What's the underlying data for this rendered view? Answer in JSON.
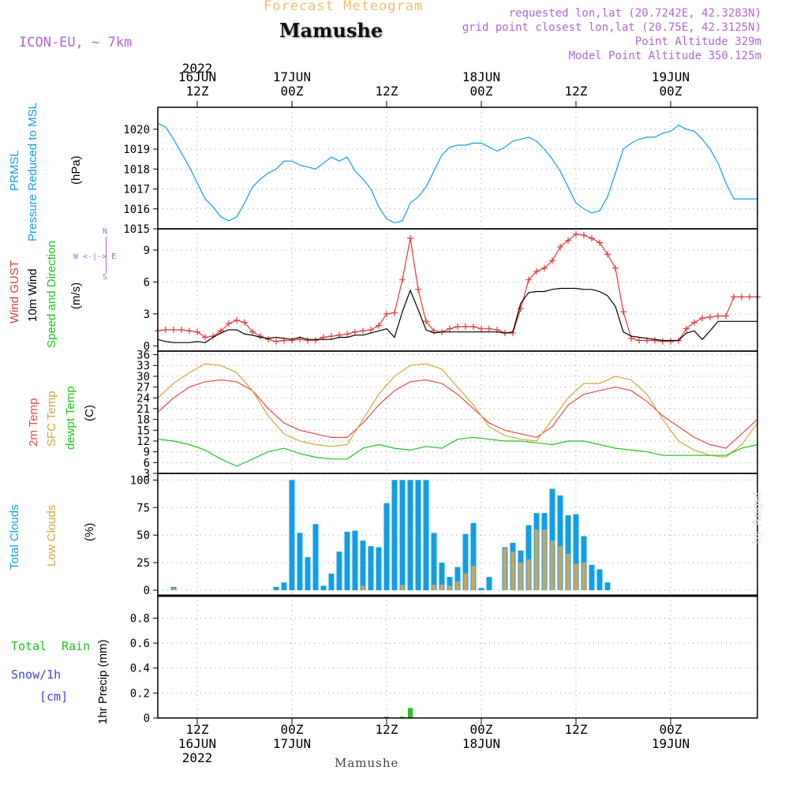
{
  "header": {
    "product": "Forecast Meteogram",
    "station": "Mamushe",
    "model": "ICON-EU, ~ 7km",
    "requested": "requested lon,lat (20.7242E, 42.3283N)",
    "grid_point": "grid point closest lon,lat (20.75E, 42.3125N)",
    "point_alt": "Point Altitude 329m",
    "model_alt": "Model Point Altitude 350.125m",
    "watermark": "by Angel",
    "footer_station": "Mamushe"
  },
  "time_axis": {
    "year": "2022",
    "ticks": [
      {
        "h": 12,
        "top": [
          "16JUN",
          "12Z"
        ],
        "bottom": [
          "12Z",
          "16JUN",
          "2022"
        ]
      },
      {
        "h": 24,
        "top": [
          "17JUN",
          "00Z"
        ],
        "bottom": [
          "00Z",
          "17JUN"
        ]
      },
      {
        "h": 36,
        "top": [
          "12Z"
        ],
        "bottom": [
          "12Z"
        ]
      },
      {
        "h": 48,
        "top": [
          "18JUN",
          "00Z"
        ],
        "bottom": [
          "00Z",
          "18JUN"
        ]
      },
      {
        "h": 60,
        "top": [
          "12Z"
        ],
        "bottom": [
          "12Z"
        ]
      },
      {
        "h": 72,
        "top": [
          "19JUN",
          "00Z"
        ],
        "bottom": [
          "00Z",
          "19JUN"
        ]
      }
    ],
    "hour_range": [
      7,
      83
    ]
  },
  "colors": {
    "pressure": "#119ee6",
    "gust": "#e23a3a",
    "wind": "#000000",
    "temp": "#e34a4a",
    "sfc": "#d8a53e",
    "dewpt": "#22c322",
    "total_clouds": "#119ee6",
    "low_clouds": "#c7a55e",
    "rain": "#22c322",
    "snow": "#4444dd",
    "header_purple": "#b066d8",
    "header_orange": "#f0c070"
  },
  "chart_data": [
    {
      "type": "line",
      "panel": "pressure",
      "labels": [
        "PRMSL",
        "Pressure Reduced to MSL",
        "(hPa)"
      ],
      "yticks": [
        1015,
        1016,
        1017,
        1018,
        1019,
        1020
      ],
      "ylim": [
        1015,
        1021.1
      ],
      "series": [
        {
          "name": "PRMSL",
          "x": [
            7,
            8,
            9,
            10,
            11,
            12,
            13,
            14,
            15,
            16,
            17,
            18,
            19,
            20,
            21,
            22,
            23,
            24,
            25,
            26,
            27,
            28,
            29,
            30,
            31,
            32,
            33,
            34,
            35,
            36,
            37,
            38,
            39,
            40,
            41,
            42,
            43,
            44,
            45,
            46,
            47,
            48,
            49,
            50,
            51,
            52,
            53,
            54,
            55,
            56,
            57,
            58,
            59,
            60,
            61,
            62,
            63,
            64,
            65,
            66,
            67,
            68,
            69,
            70,
            71,
            72,
            73,
            74,
            75,
            76,
            77,
            78,
            79,
            80,
            81,
            82,
            83
          ],
          "values": [
            1020.3,
            1020.1,
            1019.5,
            1018.8,
            1018.1,
            1017.3,
            1016.5,
            1016.1,
            1015.6,
            1015.4,
            1015.6,
            1016.3,
            1017.1,
            1017.5,
            1017.8,
            1018.0,
            1018.4,
            1018.4,
            1018.2,
            1018.1,
            1018.0,
            1018.3,
            1018.6,
            1018.4,
            1018.6,
            1017.9,
            1017.5,
            1017.0,
            1016.1,
            1015.5,
            1015.3,
            1015.4,
            1016.3,
            1016.6,
            1017.1,
            1017.9,
            1018.7,
            1019.1,
            1019.2,
            1019.2,
            1019.3,
            1019.3,
            1019.1,
            1018.9,
            1019.1,
            1019.4,
            1019.5,
            1019.6,
            1019.4,
            1019.0,
            1018.5,
            1017.9,
            1017.1,
            1016.3,
            1016.0,
            1015.8,
            1015.9,
            1016.6,
            1017.8,
            1019.0,
            1019.3,
            1019.5,
            1019.6,
            1019.6,
            1019.8,
            1019.9,
            1020.2,
            1020.0,
            1019.9,
            1019.5,
            1019.0,
            1018.3,
            1017.3,
            1016.5,
            1016.5,
            1016.5,
            1016.5
          ]
        }
      ]
    },
    {
      "type": "line",
      "panel": "wind",
      "labels": [
        "Wind GUST",
        "10m Wind",
        "Speed and Direction",
        "(m/s)"
      ],
      "compass": [
        "N",
        "W <-|-> E",
        "S"
      ],
      "yticks": [
        0,
        3,
        6,
        9
      ],
      "ylim": [
        -0.5,
        11
      ],
      "series": [
        {
          "name": "Wind GUST",
          "x": [
            7,
            8,
            9,
            10,
            11,
            12,
            13,
            14,
            15,
            16,
            17,
            18,
            19,
            20,
            21,
            22,
            23,
            24,
            25,
            26,
            27,
            28,
            29,
            30,
            31,
            32,
            33,
            34,
            35,
            36,
            37,
            38,
            39,
            40,
            41,
            42,
            43,
            44,
            45,
            46,
            47,
            48,
            49,
            50,
            51,
            52,
            53,
            54,
            55,
            56,
            57,
            58,
            59,
            60,
            61,
            62,
            63,
            64,
            65,
            66,
            67,
            68,
            69,
            70,
            71,
            72,
            73,
            74,
            75,
            76,
            77,
            78,
            79,
            80,
            81,
            82,
            83
          ],
          "values": [
            1.4,
            1.5,
            1.5,
            1.5,
            1.4,
            1.3,
            0.8,
            0.9,
            1.4,
            2.1,
            2.4,
            2.2,
            1.3,
            0.9,
            0.6,
            0.4,
            0.5,
            0.5,
            0.6,
            0.5,
            0.5,
            0.8,
            0.9,
            1.0,
            1.1,
            1.3,
            1.4,
            1.5,
            1.9,
            3.0,
            3.1,
            6.2,
            10.1,
            5.3,
            2.3,
            1.4,
            1.3,
            1.6,
            1.8,
            1.8,
            1.8,
            1.6,
            1.6,
            1.5,
            1.2,
            1.2,
            3.5,
            6.2,
            7.0,
            7.3,
            8.0,
            9.3,
            9.9,
            10.5,
            10.4,
            10.1,
            9.7,
            8.6,
            7.3,
            3.2,
            0.7,
            0.5,
            0.5,
            0.5,
            0.4,
            0.4,
            0.5,
            1.6,
            2.2,
            2.6,
            2.7,
            2.8,
            2.8,
            4.6,
            4.6,
            4.6,
            4.6
          ]
        },
        {
          "name": "10m Wind",
          "x": [
            7,
            8,
            9,
            10,
            11,
            12,
            13,
            14,
            15,
            16,
            17,
            18,
            19,
            20,
            21,
            22,
            23,
            24,
            25,
            26,
            27,
            28,
            29,
            30,
            31,
            32,
            33,
            34,
            35,
            36,
            37,
            38,
            39,
            40,
            41,
            42,
            43,
            44,
            45,
            46,
            47,
            48,
            49,
            50,
            51,
            52,
            53,
            54,
            55,
            56,
            57,
            58,
            59,
            60,
            61,
            62,
            63,
            64,
            65,
            66,
            67,
            68,
            69,
            70,
            71,
            72,
            73,
            74,
            75,
            76,
            77,
            78,
            79,
            80,
            81,
            82,
            83
          ],
          "values": [
            0.6,
            0.4,
            0.3,
            0.3,
            0.3,
            0.4,
            0.3,
            0.8,
            1.2,
            1.5,
            1.5,
            1.1,
            1.0,
            0.8,
            0.7,
            0.8,
            0.7,
            0.6,
            0.8,
            0.6,
            0.6,
            0.6,
            0.6,
            0.8,
            0.8,
            1.0,
            1.0,
            1.2,
            1.4,
            1.6,
            0.8,
            3.2,
            5.2,
            3.4,
            1.5,
            1.2,
            1.3,
            1.3,
            1.3,
            1.3,
            1.3,
            1.3,
            1.3,
            1.3,
            1.2,
            1.3,
            4.0,
            5.0,
            5.1,
            5.1,
            5.3,
            5.4,
            5.4,
            5.4,
            5.3,
            5.3,
            5.1,
            4.7,
            3.7,
            1.3,
            0.9,
            0.8,
            0.7,
            0.6,
            0.5,
            0.5,
            0.5,
            1.2,
            1.4,
            0.6,
            1.4,
            2.3,
            2.3,
            2.3,
            2.3,
            2.3,
            2.3
          ]
        }
      ]
    },
    {
      "type": "line",
      "panel": "temperature",
      "labels": [
        "2m Temp",
        "SFC Temp",
        "dewpt Temp",
        "(C)"
      ],
      "yticks": [
        3,
        6,
        9,
        12,
        15,
        18,
        21,
        24,
        27,
        30,
        33,
        36
      ],
      "ylim": [
        3,
        37
      ],
      "series": [
        {
          "name": "2m Temp",
          "x": [
            7,
            9,
            11,
            13,
            15,
            17,
            19,
            21,
            23,
            25,
            27,
            29,
            31,
            33,
            35,
            37,
            39,
            41,
            43,
            45,
            47,
            49,
            51,
            53,
            55,
            57,
            59,
            61,
            63,
            65,
            67,
            69,
            71,
            73,
            75,
            77,
            79,
            81,
            83
          ],
          "values": [
            20,
            24,
            27,
            28.5,
            29,
            28.5,
            26,
            21,
            17,
            15,
            14,
            13,
            13,
            17,
            22,
            26,
            28.5,
            29,
            28,
            25,
            21,
            17,
            15,
            14,
            13,
            16,
            22,
            25,
            26,
            27,
            26,
            23,
            19,
            16,
            13,
            11,
            10,
            14,
            18
          ]
        },
        {
          "name": "SFC Temp",
          "x": [
            7,
            9,
            11,
            13,
            15,
            17,
            19,
            21,
            23,
            25,
            27,
            29,
            31,
            33,
            35,
            37,
            39,
            41,
            43,
            45,
            47,
            49,
            51,
            53,
            55,
            57,
            59,
            61,
            63,
            65,
            67,
            69,
            71,
            73,
            75,
            77,
            79,
            81,
            83
          ],
          "values": [
            24,
            28,
            31,
            33.5,
            33,
            31,
            26,
            19,
            14,
            12,
            11,
            10.5,
            11,
            18,
            25,
            30,
            33,
            33.5,
            32,
            27,
            22,
            16,
            13.5,
            12.5,
            12,
            18,
            24,
            28,
            28,
            30,
            29,
            25,
            18,
            12,
            9.5,
            8,
            7.5,
            11,
            17
          ]
        },
        {
          "name": "dewpt Temp",
          "x": [
            7,
            9,
            11,
            13,
            15,
            17,
            19,
            21,
            23,
            25,
            27,
            29,
            31,
            33,
            35,
            37,
            39,
            41,
            43,
            45,
            47,
            49,
            51,
            53,
            55,
            57,
            59,
            61,
            63,
            65,
            67,
            69,
            71,
            73,
            75,
            77,
            79,
            81,
            83
          ],
          "values": [
            12.5,
            12,
            11,
            9.5,
            7,
            5,
            7,
            9,
            10,
            8.5,
            7.5,
            7,
            7,
            10,
            11,
            10,
            9.5,
            10.5,
            10,
            12.5,
            13,
            12.5,
            12,
            12,
            11.5,
            11,
            12,
            12,
            11,
            10,
            9.5,
            9,
            8,
            8,
            8,
            8,
            8,
            10,
            11
          ]
        }
      ]
    },
    {
      "type": "bar",
      "panel": "clouds",
      "labels": [
        "Total Clouds",
        "Low Clouds",
        "(%)"
      ],
      "yticks": [
        0,
        25,
        50,
        75,
        100
      ],
      "ylim": [
        -5,
        106
      ],
      "x": [
        9,
        22,
        23,
        24,
        25,
        26,
        27,
        28,
        29,
        30,
        31,
        32,
        33,
        34,
        35,
        36,
        37,
        38,
        39,
        40,
        41,
        42,
        43,
        44,
        45,
        46,
        47,
        48,
        49,
        50,
        51,
        52,
        53,
        54,
        55,
        56,
        57,
        58,
        59,
        60,
        61,
        62,
        63,
        64,
        65,
        66,
        67,
        68,
        69
      ],
      "series": [
        {
          "name": "Total Clouds",
          "values": [
            3,
            3,
            7,
            100,
            52,
            30,
            60,
            4,
            15,
            35,
            53,
            54,
            45,
            40,
            39,
            79,
            100,
            100,
            100,
            100,
            100,
            52,
            25,
            12,
            21,
            51,
            61,
            2,
            12,
            0,
            39,
            43,
            36,
            59,
            70,
            70,
            92,
            86,
            68,
            69,
            49,
            23,
            19,
            7,
            0,
            0,
            0,
            0,
            0
          ]
        },
        {
          "name": "Low Clouds",
          "values": [
            2,
            0,
            0,
            0,
            0,
            0,
            0,
            0,
            0,
            0,
            0,
            0,
            4,
            0,
            0,
            0,
            0,
            5,
            0,
            0,
            0,
            5,
            5,
            4,
            8,
            15,
            22,
            0,
            0,
            0,
            38,
            35,
            25,
            28,
            55,
            55,
            45,
            40,
            33,
            24,
            25,
            0,
            0,
            0,
            0,
            0,
            0,
            0,
            0
          ]
        }
      ]
    },
    {
      "type": "bar",
      "panel": "precip",
      "labels": [
        "Total",
        "Rain",
        "Snow/1h",
        "[cm]",
        "1hr Precip (mm)"
      ],
      "yticks": [
        0,
        0.2,
        0.4,
        0.6,
        0.8
      ],
      "ylim": [
        0,
        0.98
      ],
      "x": [
        36,
        38,
        39
      ],
      "series": [
        {
          "name": "Total Rain",
          "values": [
            0.01,
            0.01,
            0.08
          ]
        }
      ]
    }
  ]
}
